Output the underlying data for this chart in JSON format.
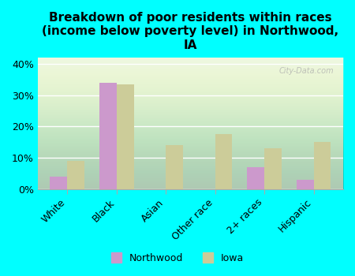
{
  "title": "Breakdown of poor residents within races\n(income below poverty level) in Northwood,\nIA",
  "categories": [
    "White",
    "Black",
    "Asian",
    "Other race",
    "2+ races",
    "Hispanic"
  ],
  "northwood": [
    4.0,
    34.0,
    0.0,
    0.0,
    7.0,
    3.0
  ],
  "iowa": [
    9.0,
    33.5,
    14.0,
    17.5,
    13.0,
    15.0
  ],
  "northwood_color": "#cc99cc",
  "iowa_color": "#cccc99",
  "background_color": "#00ffff",
  "plot_bg_color": "#e8f5e0",
  "ylim": [
    0,
    42
  ],
  "yticks": [
    0,
    10,
    20,
    30,
    40
  ],
  "ytick_labels": [
    "0%",
    "10%",
    "20%",
    "30%",
    "40%"
  ],
  "bar_width": 0.35,
  "title_fontsize": 11,
  "watermark": "City-Data.com"
}
